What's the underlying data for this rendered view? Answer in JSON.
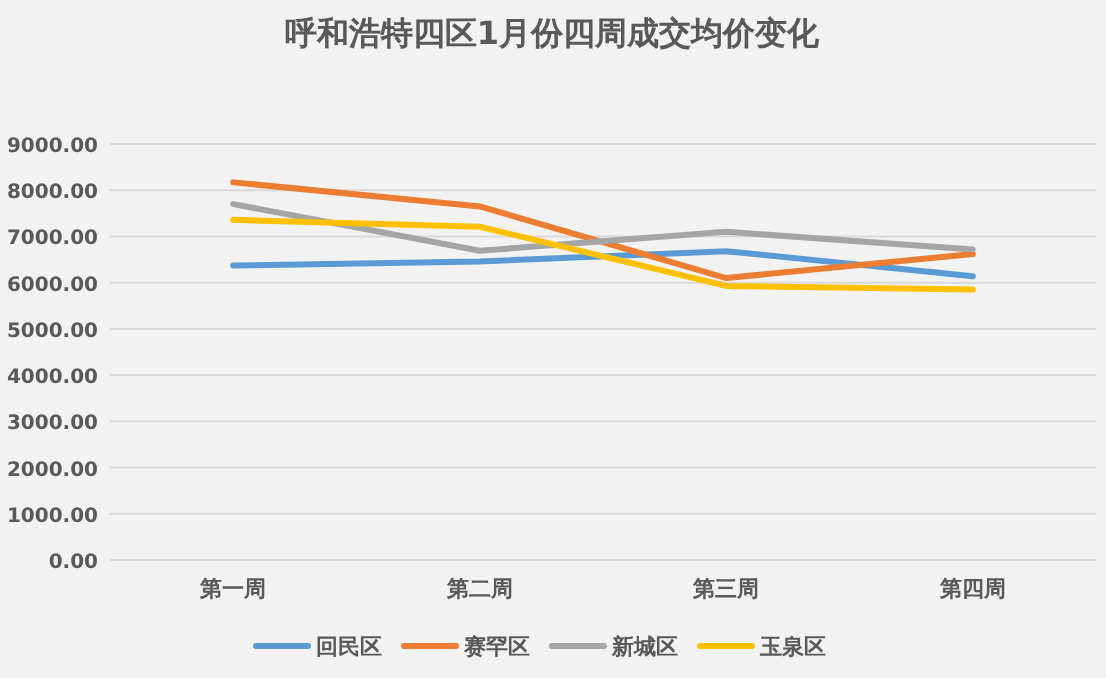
{
  "chart_data": {
    "type": "line",
    "title": "呼和浩特四区1月份四周成交均价变化",
    "categories": [
      "第一周",
      "第二周",
      "第三周",
      "第四周"
    ],
    "series": [
      {
        "name": "回民区",
        "color": "#5b9bd5",
        "values": [
          6370,
          6460,
          6680,
          6140
        ]
      },
      {
        "name": "赛罕区",
        "color": "#ed7d31",
        "values": [
          8170,
          7650,
          6100,
          6620
        ]
      },
      {
        "name": "新城区",
        "color": "#a5a5a5",
        "values": [
          7700,
          6690,
          7100,
          6720
        ]
      },
      {
        "name": "玉泉区",
        "color": "#ffc000",
        "values": [
          7360,
          7210,
          5930,
          5850
        ]
      }
    ],
    "ylim": [
      0,
      9000
    ],
    "yticks": [
      {
        "value": 0,
        "label": "0.00"
      },
      {
        "value": 1000,
        "label": "1000.00"
      },
      {
        "value": 2000,
        "label": "2000.00"
      },
      {
        "value": 3000,
        "label": "3000.00"
      },
      {
        "value": 4000,
        "label": "4000.00"
      },
      {
        "value": 5000,
        "label": "5000.00"
      },
      {
        "value": 6000,
        "label": "6000.00"
      },
      {
        "value": 7000,
        "label": "7000.00"
      },
      {
        "value": 8000,
        "label": "8000.00"
      },
      {
        "value": 9000,
        "label": "9000.00"
      }
    ],
    "grid": "y",
    "legend": "bottom",
    "marker": "none",
    "line_style": "solid"
  }
}
